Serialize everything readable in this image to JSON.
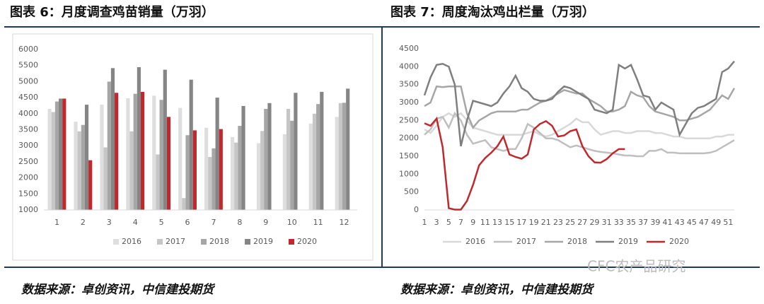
{
  "chart_data": [
    {
      "type": "bar",
      "title": "图表 6：月度调查鸡苗销量（万羽）",
      "categories": [
        "1",
        "2",
        "3",
        "4",
        "5",
        "6",
        "7",
        "8",
        "9",
        "10",
        "11",
        "12"
      ],
      "series": [
        {
          "name": "2016",
          "color": "#dedede",
          "values": [
            4150,
            3750,
            4280,
            4480,
            4560,
            4180,
            3560,
            3270,
            3080,
            3360,
            3690,
            3900
          ]
        },
        {
          "name": "2017",
          "color": "#c6c6c6",
          "values": [
            4050,
            3450,
            2950,
            3450,
            2730,
            1370,
            2650,
            3100,
            3460,
            4150,
            4000,
            4330
          ]
        },
        {
          "name": "2018",
          "color": "#a6a6a6",
          "values": [
            4380,
            3650,
            5000,
            4620,
            4430,
            3330,
            2920,
            3620,
            4150,
            3780,
            4300,
            4340
          ]
        },
        {
          "name": "2019",
          "color": "#858585",
          "values": [
            4470,
            4280,
            5420,
            5450,
            5370,
            5060,
            4500,
            4240,
            4330,
            4650,
            4680,
            4780
          ]
        },
        {
          "name": "2020",
          "color": "#c0282d",
          "values": [
            4470,
            2550,
            4650,
            4680,
            3900,
            3480,
            3520,
            null,
            null,
            null,
            null,
            null
          ]
        }
      ],
      "ylim": [
        1000,
        6000
      ],
      "yticks": [
        1000,
        1500,
        2000,
        2500,
        3000,
        3500,
        4000,
        4500,
        5000,
        5500,
        6000
      ]
    },
    {
      "type": "line",
      "title": "图表 7：周度淘汰鸡出栏量（万羽）",
      "x": [
        1,
        2,
        3,
        4,
        5,
        6,
        7,
        8,
        9,
        10,
        11,
        12,
        13,
        14,
        15,
        16,
        17,
        18,
        19,
        20,
        21,
        22,
        23,
        24,
        25,
        26,
        27,
        28,
        29,
        30,
        31,
        32,
        33,
        34,
        35,
        36,
        37,
        38,
        39,
        40,
        41,
        42,
        43,
        44,
        45,
        46,
        47,
        48,
        49,
        50,
        51,
        52
      ],
      "xlim": [
        1,
        52
      ],
      "xticks": [
        1,
        3,
        5,
        7,
        9,
        11,
        13,
        15,
        17,
        19,
        21,
        23,
        25,
        27,
        29,
        31,
        33,
        35,
        37,
        39,
        41,
        43,
        45,
        47,
        49,
        51
      ],
      "series": [
        {
          "name": "2016",
          "color": "#d9d9d9",
          "values": [
            2250,
            2150,
            2350,
            2600,
            2700,
            2600,
            2700,
            2500,
            2300,
            2250,
            2200,
            2150,
            2100,
            2100,
            2100,
            2100,
            2100,
            2150,
            2200,
            2100,
            2050,
            2100,
            2200,
            2300,
            2400,
            2550,
            2450,
            2450,
            2250,
            2100,
            2150,
            2200,
            2200,
            2150,
            2150,
            2200,
            2200,
            2200,
            2150,
            2150,
            2100,
            2050,
            2050,
            2000,
            2000,
            2000,
            2000,
            2000,
            2050,
            2050,
            2100,
            2100
          ]
        },
        {
          "name": "2017",
          "color": "#bfbfbf",
          "values": [
            2100,
            2250,
            2550,
            2600,
            2300,
            2700,
            2500,
            2100,
            1850,
            1900,
            1950,
            1750,
            1700,
            1650,
            1700,
            1700,
            2000,
            2400,
            2300,
            2150,
            2000,
            2000,
            1950,
            1850,
            1750,
            1800,
            1750,
            1700,
            1650,
            1620,
            1600,
            1580,
            1550,
            1520,
            1520,
            1500,
            1500,
            1650,
            1650,
            1700,
            1600,
            1600,
            1580,
            1580,
            1580,
            1580,
            1580,
            1600,
            1650,
            1750,
            1850,
            1950
          ]
        },
        {
          "name": "2018",
          "color": "#a6a6a6",
          "values": [
            2900,
            3000,
            3450,
            3430,
            3450,
            3450,
            3450,
            2700,
            2300,
            2500,
            2600,
            2700,
            2750,
            2750,
            2750,
            2750,
            2800,
            2800,
            2900,
            3000,
            3050,
            3150,
            3250,
            3350,
            3300,
            3250,
            3250,
            3100,
            3000,
            2900,
            2750,
            2750,
            2800,
            2900,
            3300,
            3200,
            3150,
            2900,
            2750,
            2700,
            2650,
            2600,
            2500,
            2500,
            2550,
            2600,
            2700,
            2800,
            3000,
            3200,
            3100,
            3400
          ]
        },
        {
          "name": "2019",
          "color": "#7f7f7f",
          "values": [
            3200,
            3700,
            4050,
            4080,
            4000,
            3500,
            1780,
            2500,
            3050,
            3000,
            2950,
            2900,
            3000,
            3250,
            3450,
            3750,
            3400,
            3300,
            3100,
            3050,
            3050,
            3100,
            3300,
            3450,
            3400,
            3300,
            3200,
            3100,
            2800,
            2750,
            2700,
            2800,
            4050,
            3950,
            4050,
            3650,
            3200,
            3150,
            2800,
            3000,
            2900,
            2800,
            2100,
            2400,
            2700,
            2850,
            2900,
            3000,
            3100,
            3850,
            3950,
            4150
          ]
        },
        {
          "name": "2020",
          "color": "#c0282d",
          "values": [
            2420,
            2350,
            2550,
            1750,
            50,
            10,
            10,
            250,
            700,
            1250,
            1450,
            1600,
            1780,
            2050,
            1550,
            1480,
            1430,
            1550,
            2250,
            2400,
            2480,
            2350,
            2050,
            2080,
            2200,
            2250,
            1780,
            1500,
            1330,
            1320,
            1420,
            1580,
            1700,
            1700,
            null,
            null,
            null,
            null,
            null,
            null,
            null,
            null,
            null,
            null,
            null,
            null,
            null,
            null,
            null,
            null,
            null,
            null
          ]
        }
      ],
      "ylim": [
        0,
        4500
      ],
      "yticks": [
        0,
        500,
        1000,
        1500,
        2000,
        2500,
        3000,
        3500,
        4000,
        4500
      ]
    }
  ],
  "sources": [
    "数据来源：卓创资讯，中信建投期货",
    "数据来源：卓创资讯，中信建投期货"
  ],
  "watermark": "CFC农产品研究"
}
